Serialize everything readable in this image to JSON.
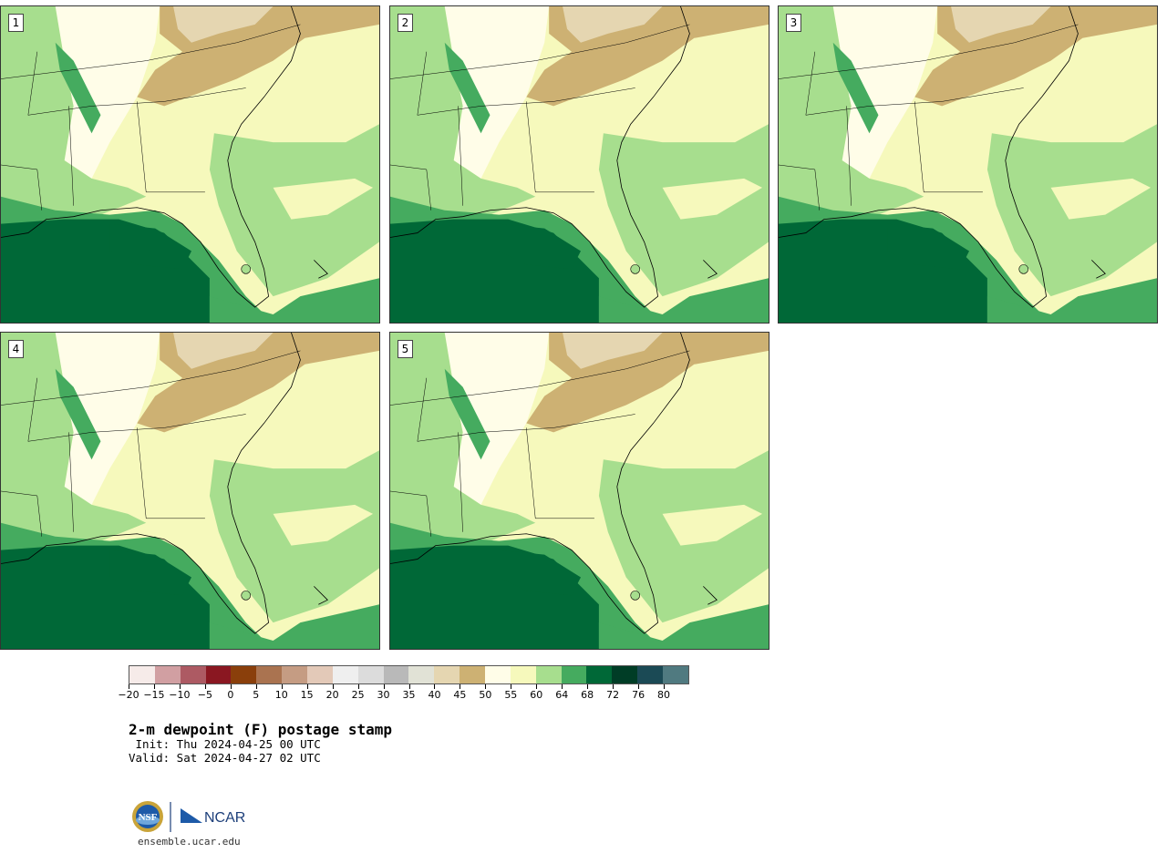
{
  "panels": [
    {
      "label": "1"
    },
    {
      "label": "2"
    },
    {
      "label": "3"
    },
    {
      "label": "4"
    },
    {
      "label": "5"
    }
  ],
  "colorbar": {
    "colors": [
      "#f6ebe9",
      "#d19fa2",
      "#ad5a63",
      "#8a1721",
      "#8a3f0b",
      "#aa7350",
      "#c59c83",
      "#e3c9b8",
      "#efefef",
      "#dcdcdc",
      "#b9b9b9",
      "#e1e2d6",
      "#e5d6b1",
      "#cdb173",
      "#fffde8",
      "#f6f9bc",
      "#a7de8e",
      "#45ab5f",
      "#006837",
      "#003d26",
      "#1b4a55",
      "#507a80"
    ],
    "tick_labels": [
      "-20",
      "-15",
      "-10",
      "-5",
      "0",
      "5",
      "10",
      "15",
      "20",
      "25",
      "30",
      "35",
      "40",
      "45",
      "50",
      "55",
      "60",
      "64",
      "68",
      "72",
      "76",
      "80"
    ]
  },
  "title": "2-m dewpoint (F) postage stamp",
  "init": " Init: Thu 2024-04-25 00 UTC",
  "valid": "Valid: Sat 2024-04-27 02 UTC",
  "logos": {
    "nsf": "NSF",
    "ncar": "NCAR"
  },
  "website": "ensemble.ucar.edu"
}
